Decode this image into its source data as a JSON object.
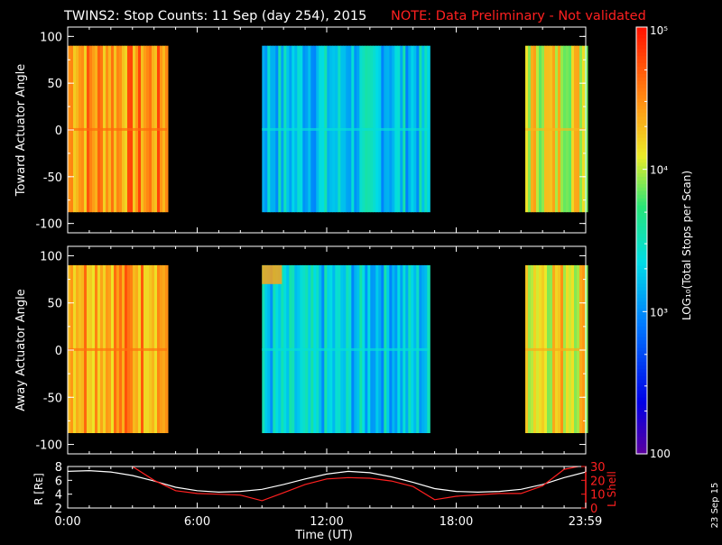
{
  "header": {
    "title": "TWINS2: Stop Counts: 11 Sep (day 254), 2015",
    "note": "NOTE: Data Preliminary - Not validated",
    "title_color": "#ffffff",
    "note_color": "#ff2020"
  },
  "side_date": "23 Sep 15",
  "colorbar": {
    "label": "LOG₁₀(Total Stops per Scan)",
    "ticks": [
      {
        "value": 100,
        "label": "100"
      },
      {
        "value": 1000,
        "label": "10³"
      },
      {
        "value": 10000,
        "label": "10⁴"
      },
      {
        "value": 100000,
        "label": "10⁵"
      }
    ],
    "range": [
      100,
      100000
    ],
    "scale": "log"
  },
  "chart_data": [
    {
      "type": "heatmap",
      "panel": "toward",
      "ylabel": "Toward Actuator Angle",
      "ylim": [
        -110,
        110
      ],
      "yticks": [
        {
          "value": 100,
          "label": "100"
        },
        {
          "value": 50,
          "label": "50"
        },
        {
          "value": 0,
          "label": "0"
        },
        {
          "value": -50,
          "label": "-50"
        },
        {
          "value": -100,
          "label": "-100"
        }
      ],
      "xlim_hours": [
        0,
        24
      ],
      "data_angle_range": [
        -88,
        90
      ],
      "segments": [
        {
          "start_hour": 0.0,
          "end_hour": 4.6,
          "level": 0.83
        },
        {
          "start_hour": 9.0,
          "end_hour": 16.7,
          "level": 0.42
        },
        {
          "start_hour": 21.2,
          "end_hour": 23.98,
          "level": 0.72
        }
      ]
    },
    {
      "type": "heatmap",
      "panel": "away",
      "ylabel": "Away Actuator Angle",
      "ylim": [
        -110,
        110
      ],
      "yticks": [
        {
          "value": 100,
          "label": "100"
        },
        {
          "value": 50,
          "label": "50"
        },
        {
          "value": 0,
          "label": "0"
        },
        {
          "value": -50,
          "label": "-50"
        },
        {
          "value": -100,
          "label": "-100"
        }
      ],
      "xlim_hours": [
        0,
        24
      ],
      "data_angle_range": [
        -88,
        90
      ],
      "segments": [
        {
          "start_hour": 0.0,
          "end_hour": 4.6,
          "level": 0.82
        },
        {
          "start_hour": 9.0,
          "end_hour": 16.7,
          "level": 0.42
        },
        {
          "start_hour": 21.2,
          "end_hour": 23.98,
          "level": 0.74
        }
      ]
    },
    {
      "type": "line",
      "panel": "ephemeris",
      "xlabel": "Time (UT)",
      "ylabel": "R [Rᴇ]",
      "y2label": "L Shell",
      "xlim_hours": [
        0,
        24
      ],
      "ylim": [
        2,
        8
      ],
      "y2lim": [
        0,
        30
      ],
      "yticks": [
        {
          "value": 8,
          "label": "8"
        },
        {
          "value": 6,
          "label": "6"
        },
        {
          "value": 4,
          "label": "4"
        },
        {
          "value": 2,
          "label": "2"
        }
      ],
      "y2ticks": [
        {
          "value": 30,
          "label": "30"
        },
        {
          "value": 20,
          "label": "20"
        },
        {
          "value": 10,
          "label": "10"
        },
        {
          "value": 0,
          "label": "0"
        }
      ],
      "xticks": [
        {
          "value": 0,
          "label": "0:00"
        },
        {
          "value": 6,
          "label": "6:00"
        },
        {
          "value": 12,
          "label": "12:00"
        },
        {
          "value": 18,
          "label": "18:00"
        },
        {
          "value": 23.98,
          "label": "23:59"
        }
      ],
      "series": [
        {
          "name": "R",
          "color": "#ffffff",
          "axis": "left",
          "x": [
            0,
            1,
            2,
            3,
            4,
            5,
            6,
            7,
            8,
            9,
            10,
            11,
            12,
            13,
            14,
            15,
            16,
            17,
            18,
            19,
            20,
            21,
            22,
            23,
            24
          ],
          "y": [
            7.3,
            7.4,
            7.2,
            6.7,
            5.9,
            5.0,
            4.5,
            4.3,
            4.4,
            4.7,
            5.4,
            6.2,
            6.9,
            7.3,
            7.1,
            6.5,
            5.7,
            4.8,
            4.4,
            4.3,
            4.4,
            4.7,
            5.4,
            6.4,
            7.2
          ]
        },
        {
          "name": "L Shell",
          "color": "#ff2020",
          "axis": "right",
          "x": [
            3.0,
            4.0,
            5.0,
            6.0,
            7.0,
            8.0,
            9.0,
            10.0,
            11.0,
            12.0,
            13.0,
            14.0,
            15.0,
            16.0,
            17.0,
            18.0,
            19.0,
            20.0,
            21.0,
            22.0,
            23.0,
            23.98
          ],
          "y": [
            30,
            20,
            12.5,
            10.5,
            10.0,
            9.3,
            5.3,
            11.0,
            17.0,
            21.0,
            22.0,
            21.5,
            19.5,
            15.5,
            6.0,
            8.5,
            9.5,
            10.5,
            10.5,
            16.0,
            28.0,
            31.0
          ]
        }
      ]
    }
  ]
}
